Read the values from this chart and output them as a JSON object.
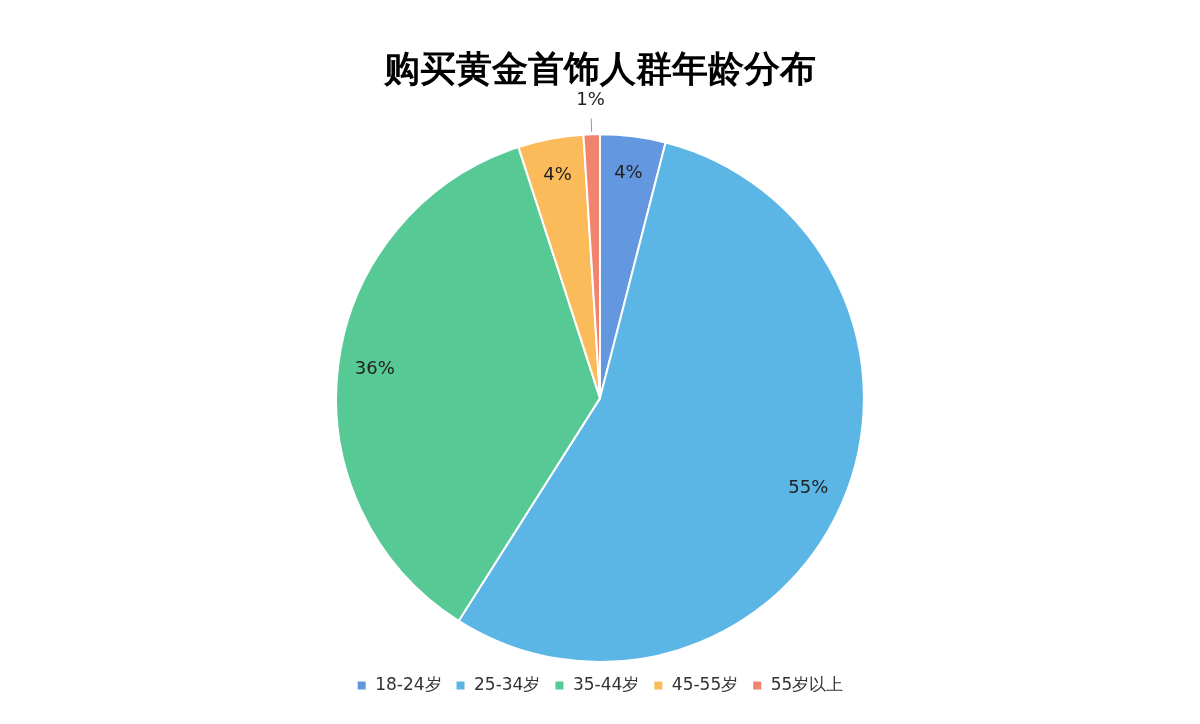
{
  "chart_data": {
    "type": "pie",
    "title": "购买黄金首饰人群年龄分布",
    "categories": [
      "18-24岁",
      "25-34岁",
      "35-44岁",
      "45-55岁",
      "55岁以上"
    ],
    "values": [
      4,
      55,
      36,
      4,
      1
    ],
    "value_labels": [
      "4%",
      "55%",
      "36%",
      "4%",
      "1%"
    ],
    "colors": [
      "#6398e1",
      "#5bb5e5",
      "#56c995",
      "#fcbb5b",
      "#f0846f"
    ],
    "legend": "bottom"
  }
}
